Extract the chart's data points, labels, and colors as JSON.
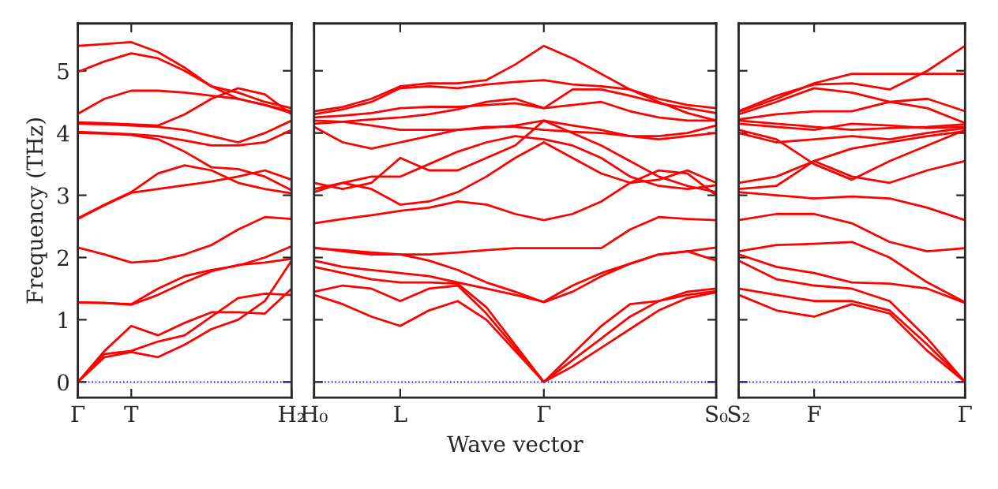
{
  "chart_data": [
    {
      "type": "line",
      "ylabel": "Frequency (THz)",
      "ylim": [
        -0.25,
        5.76
      ],
      "yticks": [
        0,
        1,
        2,
        3,
        4,
        5
      ],
      "grid": false,
      "legend": false,
      "line_style": "solid",
      "marker": "none",
      "categories": [
        "Γ",
        null,
        "T",
        null,
        null,
        null,
        null,
        null,
        "H₂"
      ],
      "ref_lines": [
        {
          "axis": "y",
          "value": 0,
          "color": "#0000ff",
          "line_style": "dotted"
        }
      ],
      "series": [
        {
          "color": "#ff0000",
          "values": [
            5.4,
            5.43,
            5.46,
            5.3,
            5.05,
            4.75,
            4.55,
            4.45,
            4.35
          ]
        },
        {
          "color": "#ff0000",
          "values": [
            4.98,
            5.15,
            5.28,
            5.2,
            5.0,
            4.75,
            4.65,
            4.5,
            4.4
          ]
        },
        {
          "color": "#ff0000",
          "values": [
            4.31,
            4.55,
            4.68,
            4.68,
            4.65,
            4.6,
            4.55,
            4.45,
            4.32
          ]
        },
        {
          "color": "#ff0000",
          "values": [
            4.17,
            4.16,
            4.14,
            4.12,
            4.3,
            4.55,
            4.72,
            4.62,
            4.3
          ]
        },
        {
          "color": "#ff0000",
          "values": [
            4.15,
            4.14,
            4.12,
            4.1,
            4.05,
            3.95,
            3.85,
            4.0,
            4.2
          ]
        },
        {
          "color": "#ff0000",
          "values": [
            4.02,
            4.0,
            3.98,
            3.95,
            3.88,
            3.8,
            3.8,
            3.85,
            4.05
          ]
        },
        {
          "color": "#ff0000",
          "values": [
            4.0,
            3.99,
            3.97,
            3.9,
            3.7,
            3.45,
            3.42,
            3.3,
            3.08
          ]
        },
        {
          "color": "#ff0000",
          "values": [
            2.63,
            2.85,
            3.05,
            3.35,
            3.48,
            3.4,
            3.2,
            3.1,
            3.03
          ]
        },
        {
          "color": "#ff0000",
          "values": [
            2.62,
            2.84,
            3.04,
            3.1,
            3.16,
            3.22,
            3.3,
            3.4,
            3.25
          ]
        },
        {
          "color": "#ff0000",
          "values": [
            2.16,
            2.05,
            1.92,
            1.95,
            2.05,
            2.2,
            2.45,
            2.65,
            2.62
          ]
        },
        {
          "color": "#ff0000",
          "values": [
            1.28,
            1.27,
            1.25,
            1.5,
            1.7,
            1.8,
            1.87,
            2.0,
            2.18
          ]
        },
        {
          "color": "#ff0000",
          "values": [
            1.28,
            1.27,
            1.24,
            1.4,
            1.6,
            1.78,
            1.88,
            1.92,
            1.98
          ]
        },
        {
          "color": "#ff0000",
          "values": [
            0,
            0.5,
            0.9,
            0.75,
            0.95,
            1.12,
            1.12,
            1.1,
            1.5
          ]
        },
        {
          "color": "#ff0000",
          "values": [
            0,
            0.45,
            0.5,
            0.65,
            0.75,
            1.05,
            1.35,
            1.42,
            1.4
          ]
        },
        {
          "color": "#ff0000",
          "values": [
            0,
            0.4,
            0.48,
            0.4,
            0.6,
            0.85,
            1.0,
            1.3,
            1.95
          ]
        }
      ]
    },
    {
      "type": "line",
      "xlabel": "Wave vector",
      "ylim": [
        -0.25,
        5.76
      ],
      "yticks": [
        0,
        1,
        2,
        3,
        4,
        5
      ],
      "tick_labels": "x",
      "grid": false,
      "legend": false,
      "line_style": "solid",
      "marker": "none",
      "categories": [
        "H₀",
        null,
        null,
        "L",
        null,
        null,
        null,
        null,
        "Γ",
        null,
        null,
        null,
        null,
        null,
        "S₀"
      ],
      "ref_lines": [
        {
          "axis": "y",
          "value": 0,
          "color": "#0000ff",
          "line_style": "dotted"
        }
      ],
      "series": [
        {
          "color": "#ff0000",
          "values": [
            4.35,
            4.42,
            4.55,
            4.75,
            4.8,
            4.8,
            4.85,
            5.1,
            5.4,
            5.2,
            4.95,
            4.7,
            4.55,
            4.45,
            4.4
          ]
        },
        {
          "color": "#ff0000",
          "values": [
            4.3,
            4.38,
            4.5,
            4.72,
            4.75,
            4.72,
            4.78,
            4.82,
            4.85,
            4.78,
            4.75,
            4.7,
            4.5,
            4.32,
            4.2
          ]
        },
        {
          "color": "#ff0000",
          "values": [
            4.25,
            4.28,
            4.32,
            4.4,
            4.42,
            4.42,
            4.45,
            4.48,
            4.4,
            4.7,
            4.7,
            4.6,
            4.48,
            4.4,
            4.32
          ]
        },
        {
          "color": "#ff0000",
          "values": [
            4.15,
            4.18,
            4.22,
            4.25,
            4.3,
            4.38,
            4.5,
            4.55,
            4.4,
            4.45,
            4.5,
            4.35,
            4.25,
            4.2,
            4.2
          ]
        },
        {
          "color": "#ff0000",
          "values": [
            4.2,
            4.18,
            4.12,
            4.05,
            4.05,
            4.05,
            4.08,
            4.12,
            4.2,
            4.12,
            4.05,
            3.95,
            3.9,
            3.95,
            4.0
          ]
        },
        {
          "color": "#ff0000",
          "values": [
            4.1,
            3.85,
            3.75,
            3.85,
            3.95,
            4.05,
            4.1,
            4.1,
            4.05,
            4.02,
            4.0,
            3.95,
            3.95,
            4.0,
            4.12
          ]
        },
        {
          "color": "#ff0000",
          "values": [
            3.2,
            3.1,
            3.2,
            3.6,
            3.4,
            3.4,
            3.6,
            3.8,
            4.2,
            4.0,
            3.8,
            3.55,
            3.3,
            3.15,
            3.05
          ]
        },
        {
          "color": "#ff0000",
          "values": [
            3.05,
            3.2,
            3.3,
            3.3,
            3.5,
            3.7,
            3.85,
            3.95,
            3.9,
            3.8,
            3.6,
            3.3,
            3.15,
            3.1,
            3.16
          ]
        },
        {
          "color": "#ff0000",
          "values": [
            3.1,
            3.2,
            3.1,
            2.85,
            2.9,
            3.05,
            3.3,
            3.6,
            3.85,
            3.6,
            3.35,
            3.2,
            3.25,
            3.4,
            3.2
          ]
        },
        {
          "color": "#ff0000",
          "values": [
            2.55,
            2.62,
            2.68,
            2.75,
            2.8,
            2.9,
            2.85,
            2.7,
            2.6,
            2.7,
            2.9,
            3.2,
            3.4,
            3.35,
            3.0
          ]
        },
        {
          "color": "#ff0000",
          "values": [
            2.15,
            2.12,
            2.08,
            2.05,
            2.05,
            2.08,
            2.12,
            2.15,
            2.15,
            2.15,
            2.15,
            2.45,
            2.65,
            2.62,
            2.6
          ]
        },
        {
          "color": "#ff0000",
          "values": [
            2.16,
            2.1,
            2.05,
            2.05,
            1.95,
            1.8,
            1.6,
            1.45,
            1.28,
            1.45,
            1.7,
            1.9,
            2.05,
            2.1,
            2.16
          ]
        },
        {
          "color": "#ff0000",
          "values": [
            1.95,
            1.85,
            1.8,
            1.75,
            1.7,
            1.6,
            1.5,
            1.4,
            1.29,
            1.55,
            1.75,
            1.9,
            2.05,
            2.1,
            1.95
          ]
        },
        {
          "color": "#ff0000",
          "values": [
            1.85,
            1.75,
            1.65,
            1.6,
            1.6,
            1.58,
            1.2,
            0.6,
            0,
            0.45,
            0.9,
            1.25,
            1.3,
            1.4,
            1.46
          ]
        },
        {
          "color": "#ff0000",
          "values": [
            1.45,
            1.55,
            1.5,
            1.3,
            1.5,
            1.55,
            1.1,
            0.55,
            0,
            0.35,
            0.7,
            1.05,
            1.3,
            1.45,
            1.5
          ]
        },
        {
          "color": "#ff0000",
          "values": [
            1.4,
            1.25,
            1.05,
            0.9,
            1.15,
            1.3,
            1.0,
            0.5,
            0,
            0.25,
            0.55,
            0.85,
            1.15,
            1.35,
            1.44
          ]
        }
      ]
    },
    {
      "type": "line",
      "ylim": [
        -0.25,
        5.76
      ],
      "yticks": [
        0,
        1,
        2,
        3,
        4,
        5
      ],
      "tick_labels": "x",
      "grid": false,
      "legend": false,
      "line_style": "solid",
      "marker": "none",
      "categories": [
        "S₂",
        null,
        "F",
        null,
        null,
        null,
        "Γ"
      ],
      "ref_lines": [
        {
          "axis": "y",
          "value": 0,
          "color": "#0000ff",
          "line_style": "dotted"
        }
      ],
      "series": [
        {
          "color": "#ff0000",
          "values": [
            4.35,
            4.6,
            4.78,
            4.8,
            4.7,
            5.0,
            5.4
          ]
        },
        {
          "color": "#ff0000",
          "values": [
            4.34,
            4.55,
            4.8,
            4.95,
            4.95,
            4.95,
            4.95
          ]
        },
        {
          "color": "#ff0000",
          "values": [
            4.3,
            4.5,
            4.72,
            4.65,
            4.5,
            4.55,
            4.35
          ]
        },
        {
          "color": "#ff0000",
          "values": [
            4.22,
            4.3,
            4.35,
            4.35,
            4.5,
            4.4,
            4.16
          ]
        },
        {
          "color": "#ff0000",
          "values": [
            4.2,
            4.15,
            4.1,
            4.05,
            4.08,
            4.1,
            4.14
          ]
        },
        {
          "color": "#ff0000",
          "values": [
            4.15,
            4.1,
            4.05,
            4.15,
            4.12,
            4.08,
            4.1
          ]
        },
        {
          "color": "#ff0000",
          "values": [
            4.05,
            3.9,
            3.5,
            3.25,
            3.55,
            3.8,
            4.05
          ]
        },
        {
          "color": "#ff0000",
          "values": [
            4.0,
            3.85,
            3.9,
            3.95,
            3.9,
            4.0,
            4.08
          ]
        },
        {
          "color": "#ff0000",
          "values": [
            3.2,
            3.3,
            3.55,
            3.75,
            3.85,
            3.95,
            4.03
          ]
        },
        {
          "color": "#ff0000",
          "values": [
            3.1,
            3.15,
            3.55,
            3.3,
            3.2,
            3.4,
            3.55
          ]
        },
        {
          "color": "#ff0000",
          "values": [
            3.05,
            3.0,
            2.95,
            2.98,
            2.95,
            2.8,
            2.6
          ]
        },
        {
          "color": "#ff0000",
          "values": [
            2.6,
            2.7,
            2.7,
            2.55,
            2.25,
            2.1,
            2.15
          ]
        },
        {
          "color": "#ff0000",
          "values": [
            2.1,
            2.2,
            2.22,
            2.25,
            2.0,
            1.6,
            1.28
          ]
        },
        {
          "color": "#ff0000",
          "values": [
            2.05,
            1.85,
            1.75,
            1.6,
            1.58,
            1.5,
            1.27
          ]
        },
        {
          "color": "#ff0000",
          "values": [
            1.95,
            1.65,
            1.55,
            1.5,
            1.3,
            0.7,
            0
          ]
        },
        {
          "color": "#ff0000",
          "values": [
            1.5,
            1.4,
            1.3,
            1.3,
            1.15,
            0.6,
            0
          ]
        },
        {
          "color": "#ff0000",
          "values": [
            1.4,
            1.15,
            1.05,
            1.25,
            1.1,
            0.5,
            0
          ]
        }
      ]
    }
  ]
}
